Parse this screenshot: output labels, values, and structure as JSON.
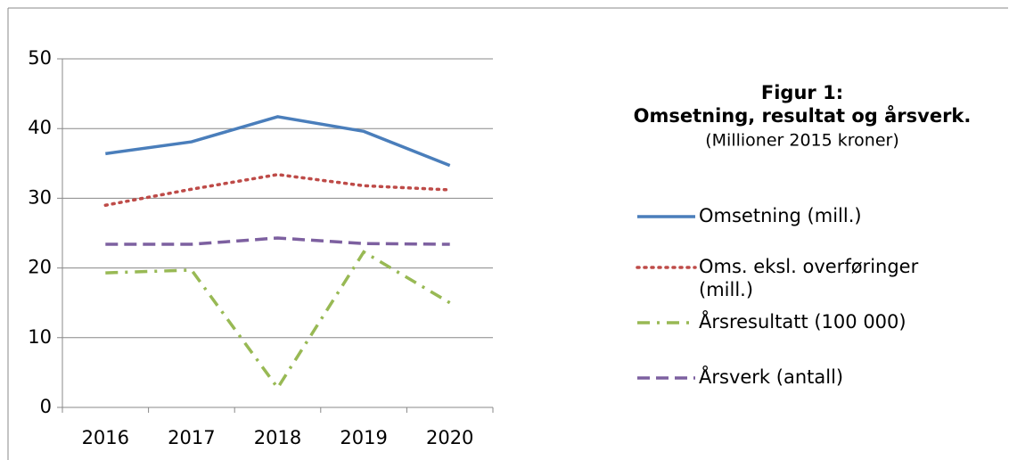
{
  "chart_data": {
    "type": "line",
    "title": "Figur 1:",
    "subtitle": "Omsetning, resultat og årsverk.",
    "note": "(Millioner 2015  kroner)",
    "categories": [
      "2016",
      "2017",
      "2018",
      "2019",
      "2020"
    ],
    "series": [
      {
        "name": "Omsetning (mill.)",
        "color": "#4a7ebb",
        "style": "solid",
        "values": [
          36.4,
          38.1,
          41.7,
          39.6,
          34.7
        ]
      },
      {
        "name": "Oms. eksl. overføringer (mill.)",
        "color": "#be4b48",
        "style": "dotted",
        "values": [
          29.0,
          31.3,
          33.4,
          31.8,
          31.2
        ]
      },
      {
        "name": "Årsresultatt (100 000)",
        "color": "#98b954",
        "style": "dashdot",
        "values": [
          19.3,
          19.7,
          2.8,
          22.3,
          15.0
        ]
      },
      {
        "name": "Årsverk (antall)",
        "color": "#7d60a0",
        "style": "dashed",
        "values": [
          23.4,
          23.4,
          24.3,
          23.5,
          23.4
        ]
      }
    ],
    "ylim": [
      0,
      50
    ],
    "yticks": [
      0,
      10,
      20,
      30,
      40,
      50
    ],
    "grid": true,
    "legend": "right"
  }
}
